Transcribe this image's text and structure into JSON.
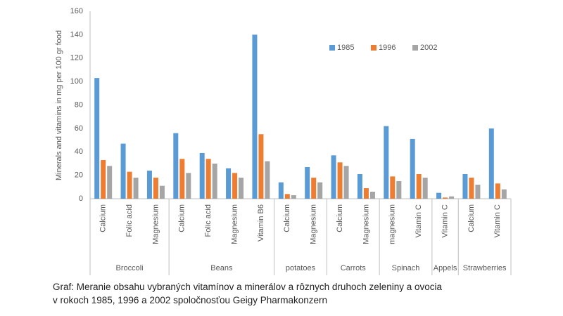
{
  "chart_data": {
    "type": "bar",
    "ylabel": "Minerals and vitamins in mg per 100 gr food",
    "groups": [
      {
        "label": "Broccoli",
        "categories": [
          "Calcium",
          "Folic acid",
          "Magnesium"
        ]
      },
      {
        "label": "Beans",
        "categories": [
          "Calcium",
          "Folic acid",
          "Magnesium",
          "Vitamin B6"
        ]
      },
      {
        "label": "potatoes",
        "categories": [
          "Calcium",
          "Magnesium"
        ]
      },
      {
        "label": "Carrots",
        "categories": [
          "Calcium",
          "Magnesium"
        ]
      },
      {
        "label": "Spinach",
        "categories": [
          "magnesium",
          "Vitamin C"
        ]
      },
      {
        "label": "Appels",
        "categories": [
          "Vitamin C"
        ]
      },
      {
        "label": "Strawberries",
        "categories": [
          "Calcium",
          "Vitamin C"
        ]
      }
    ],
    "series": [
      {
        "name": "1985",
        "color": "#5b9bd5",
        "values": [
          103,
          47,
          24,
          56,
          39,
          26,
          140,
          14,
          27,
          37,
          21,
          62,
          51,
          5,
          21,
          60
        ]
      },
      {
        "name": "1996",
        "color": "#ed7d31",
        "values": [
          33,
          23,
          18,
          34,
          34,
          22,
          55,
          4,
          18,
          31,
          9,
          19,
          21,
          1,
          18,
          13
        ]
      },
      {
        "name": "2002",
        "color": "#a5a5a5",
        "values": [
          28,
          18,
          11,
          22,
          30,
          18,
          32,
          3,
          14,
          28,
          6,
          15,
          18,
          2,
          12,
          8
        ]
      }
    ],
    "ylim": [
      0,
      160
    ],
    "yticks": [
      0,
      20,
      40,
      60,
      80,
      100,
      120,
      140,
      160
    ],
    "grid": false,
    "legend": "upper right"
  },
  "caption": [
    "Graf: Meranie obsahu vybraných vitamínov a minerálov a rôznych druhoch zeleniny a ovocia",
    "v rokoch 1985, 1996 a 2002 spoločnosťou Geigy Pharmakonzern"
  ]
}
